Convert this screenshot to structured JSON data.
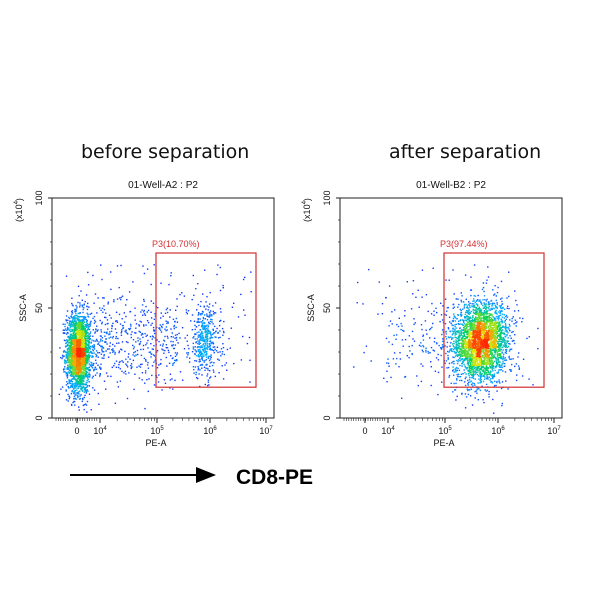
{
  "headings": {
    "left": "before separation",
    "right": "after separation"
  },
  "footer": {
    "label": "CD8-PE"
  },
  "chart_data": [
    {
      "type": "scatter",
      "title": "01-Well-A2 : P2",
      "xlabel": "PE-A",
      "ylabel": "SSC-A",
      "y_multiplier": "(x10^4)",
      "x_scale": "biexponential",
      "x_ticks": [
        "0",
        "10^4",
        "10^5",
        "10^6",
        "10^7"
      ],
      "y_ticks": [
        "0",
        "50",
        "100"
      ],
      "ylim": [
        0,
        100
      ],
      "xlim": [
        "-10^4",
        "10^7"
      ],
      "grid": false,
      "coloring": "density (blue-green-yellow-red)",
      "gate": {
        "name": "P3",
        "label": "P3(10.70%)",
        "percent": 10.7,
        "x_range": [
          "10^5",
          "5x10^6"
        ],
        "y_range": [
          14,
          75
        ],
        "color": "#d32f2f"
      },
      "populations": [
        {
          "description": "CD8-negative cluster",
          "center_x": "~0",
          "center_y": 30
        },
        {
          "description": "CD8-positive cluster",
          "center_x": "~7x10^5",
          "center_y": 35
        }
      ]
    },
    {
      "type": "scatter",
      "title": "01-Well-B2 : P2",
      "xlabel": "PE-A",
      "ylabel": "SSC-A",
      "y_multiplier": "(x10^4)",
      "x_scale": "biexponential",
      "x_ticks": [
        "0",
        "10^4",
        "10^5",
        "10^6",
        "10^7"
      ],
      "y_ticks": [
        "0",
        "50",
        "100"
      ],
      "ylim": [
        0,
        100
      ],
      "xlim": [
        "-10^4",
        "10^7"
      ],
      "grid": false,
      "coloring": "density (blue-green-yellow-red)",
      "gate": {
        "name": "P3",
        "label": "P3(97.44%)",
        "percent": 97.44,
        "x_range": [
          "10^5",
          "5x10^6"
        ],
        "y_range": [
          14,
          75
        ],
        "color": "#d32f2f"
      },
      "populations": [
        {
          "description": "CD8-positive cluster",
          "center_x": "~5x10^5",
          "center_y": 35
        }
      ]
    }
  ],
  "colors": {
    "gate": "#d32f2f",
    "low_density": "#1a1aff",
    "high_density": "#ff3300"
  }
}
